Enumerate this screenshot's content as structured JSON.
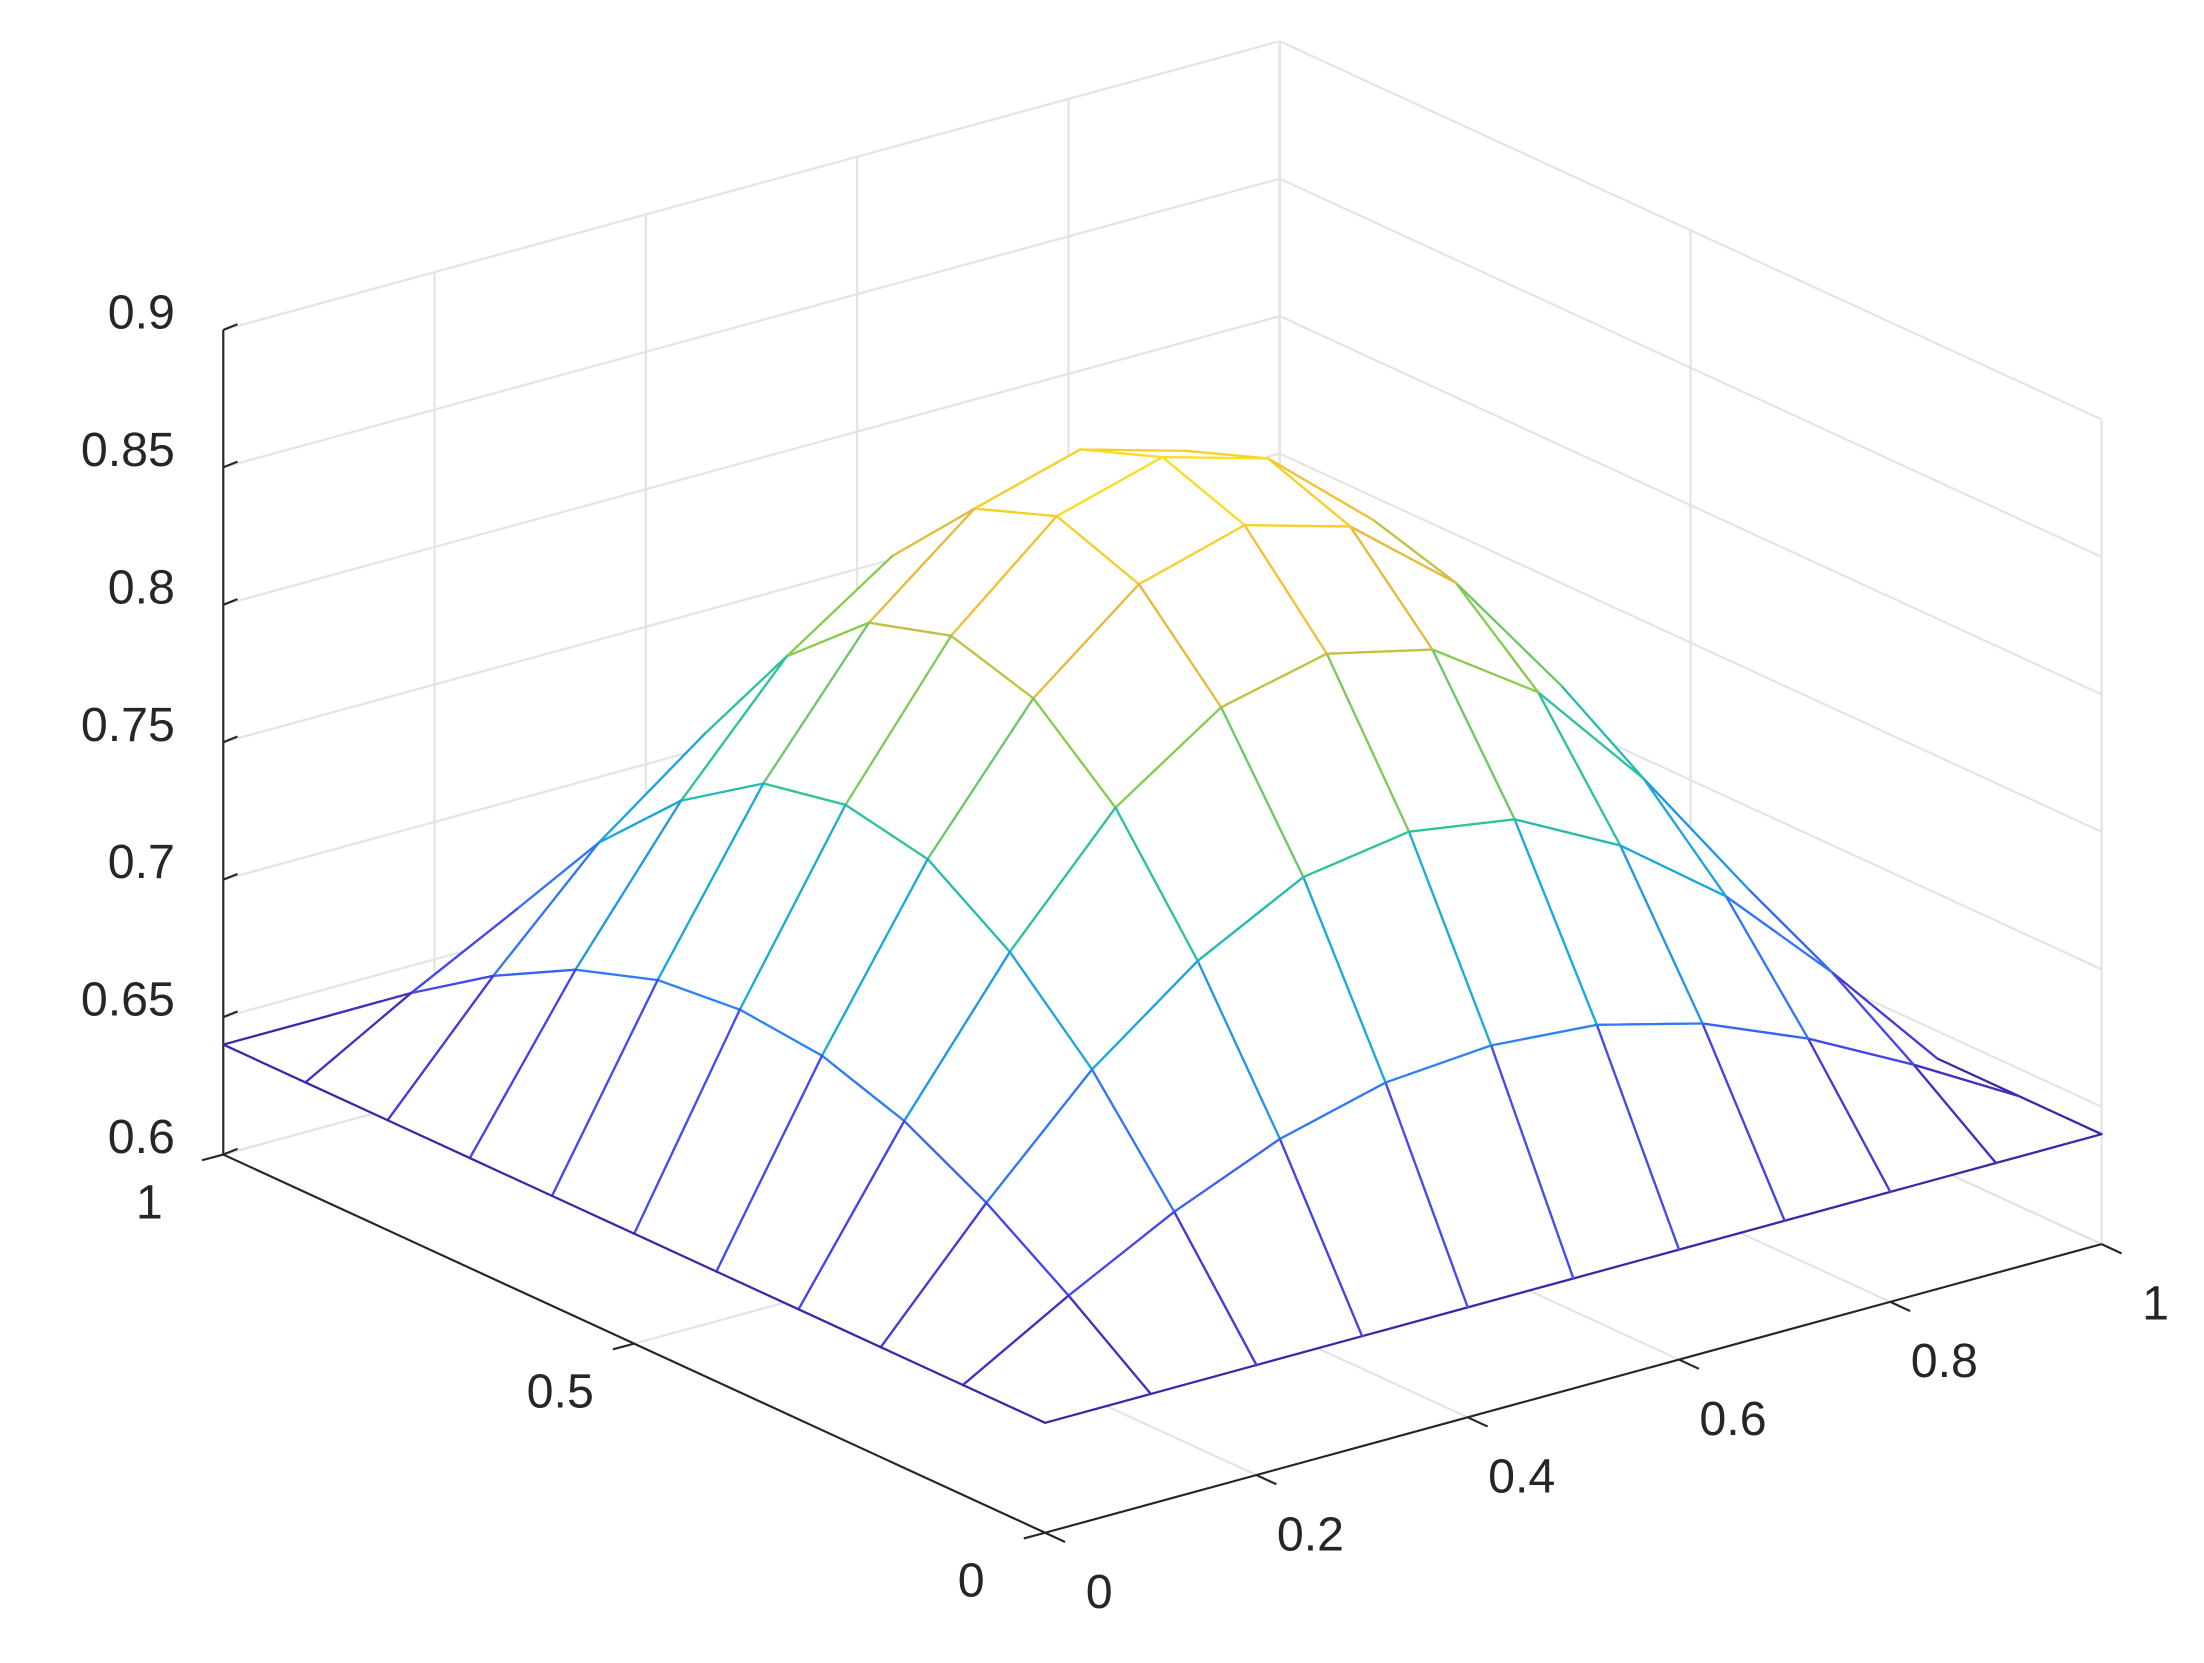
{
  "chart_data": {
    "type": "mesh",
    "x": [
      0,
      0.1,
      0.2,
      0.3,
      0.4,
      0.5,
      0.6,
      0.7,
      0.8,
      0.9,
      1
    ],
    "y": [
      0,
      0.1,
      0.2,
      0.3,
      0.4,
      0.5,
      0.6,
      0.7,
      0.8,
      0.9,
      1
    ],
    "z": [
      [
        0.64,
        0.64,
        0.64,
        0.64,
        0.64,
        0.64,
        0.64,
        0.64,
        0.64,
        0.64,
        0.64
      ],
      [
        0.64,
        0.662,
        0.682,
        0.698,
        0.708,
        0.711,
        0.708,
        0.698,
        0.682,
        0.662,
        0.64
      ],
      [
        0.64,
        0.682,
        0.72,
        0.749,
        0.769,
        0.775,
        0.769,
        0.749,
        0.72,
        0.682,
        0.64
      ],
      [
        0.64,
        0.698,
        0.749,
        0.791,
        0.817,
        0.826,
        0.817,
        0.791,
        0.749,
        0.698,
        0.64
      ],
      [
        0.64,
        0.708,
        0.769,
        0.817,
        0.848,
        0.859,
        0.848,
        0.817,
        0.769,
        0.708,
        0.64
      ],
      [
        0.64,
        0.711,
        0.775,
        0.826,
        0.859,
        0.87,
        0.859,
        0.826,
        0.775,
        0.711,
        0.64
      ],
      [
        0.64,
        0.708,
        0.769,
        0.817,
        0.848,
        0.859,
        0.848,
        0.817,
        0.769,
        0.708,
        0.64
      ],
      [
        0.64,
        0.698,
        0.749,
        0.791,
        0.817,
        0.826,
        0.817,
        0.791,
        0.749,
        0.698,
        0.64
      ],
      [
        0.64,
        0.682,
        0.72,
        0.749,
        0.769,
        0.775,
        0.769,
        0.749,
        0.72,
        0.682,
        0.64
      ],
      [
        0.64,
        0.662,
        0.682,
        0.698,
        0.708,
        0.711,
        0.708,
        0.698,
        0.682,
        0.662,
        0.64
      ],
      [
        0.64,
        0.64,
        0.64,
        0.64,
        0.64,
        0.64,
        0.64,
        0.64,
        0.64,
        0.64,
        0.64
      ]
    ],
    "xlim": [
      0,
      1
    ],
    "ylim": [
      0,
      1
    ],
    "zlim": [
      0.6,
      0.9
    ],
    "xticks": [
      0,
      0.2,
      0.4,
      0.6,
      0.8,
      1
    ],
    "yticks": [
      0,
      0.5,
      1
    ],
    "zticks": [
      0.6,
      0.65,
      0.7,
      0.75,
      0.8,
      0.85,
      0.9
    ],
    "grid": true,
    "colormap": [
      "#3e26a8",
      "#4547f0",
      "#2d7ff7",
      "#18abd8",
      "#2ec39a",
      "#8cca50",
      "#f4b93a",
      "#f9e51e"
    ]
  }
}
